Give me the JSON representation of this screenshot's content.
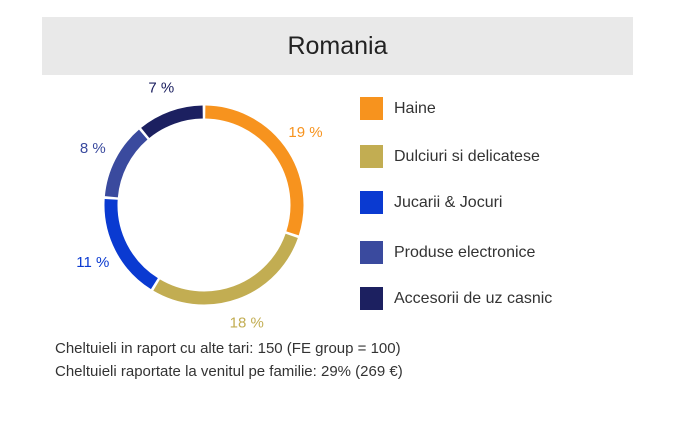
{
  "title": "Romania",
  "chart_data": {
    "type": "pie",
    "categories": [
      "Haine",
      "Dulciuri si delicatese",
      "Jucarii & Jocuri",
      "Produse electronice",
      "Accesorii de uz casnic"
    ],
    "values": [
      19,
      18,
      11,
      8,
      7
    ],
    "labels": [
      "19 %",
      "18 %",
      "11 %",
      "8 %",
      "7 %"
    ],
    "colors": [
      "#f7931e",
      "#c2ad52",
      "#0a3ad1",
      "#3a4a9e",
      "#1c2060"
    ],
    "title": "Romania"
  },
  "legend": [
    {
      "label": "Haine",
      "color": "#f7931e"
    },
    {
      "label": "Dulciuri si delicatese",
      "color": "#c2ad52"
    },
    {
      "label": "Jucarii & Jocuri",
      "color": "#0a3ad1"
    },
    {
      "label": "Produse electronice",
      "color": "#3a4a9e"
    },
    {
      "label": "Accesorii de uz casnic",
      "color": "#1c2060"
    }
  ],
  "footnotes": [
    "Cheltuieli in raport cu alte tari: 150 (FE group = 100)",
    "Cheltuieli raportate la venitul pe familie: 29% (269 €)"
  ]
}
